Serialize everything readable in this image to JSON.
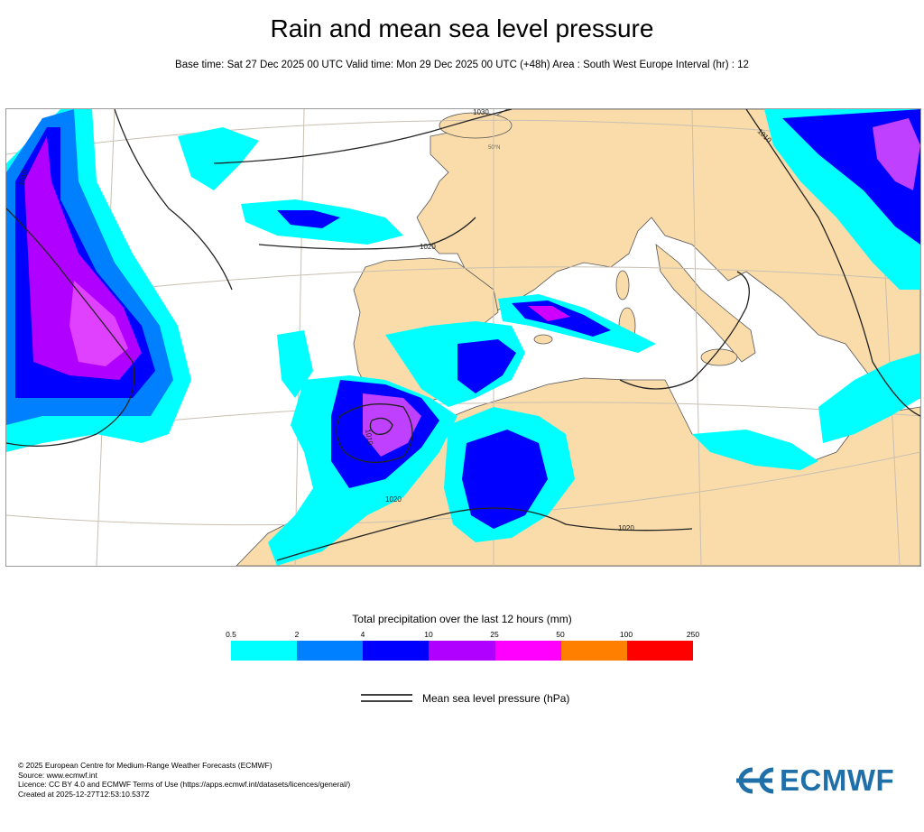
{
  "title": "Rain and mean sea level pressure",
  "subtitle": "Base time: Sat 27 Dec 2025 00 UTC Valid time: Mon 29 Dec 2025 00 UTC (+48h) Area : South West Europe Interval (hr) : 12",
  "map": {
    "isobar_labels": [
      "1030",
      "1020",
      "1010",
      "1020",
      "1020",
      "1010",
      "1010"
    ],
    "gridline_labels": [
      "50°N"
    ],
    "colors": {
      "land": "#f9dcaa",
      "sea": "#ffffff",
      "isobar": "#222222",
      "graticule": "#c9bfb2",
      "border": "#7a6b5a"
    }
  },
  "legend": {
    "title": "Total precipitation over the last 12 hours (mm)",
    "ticks": [
      "0.5",
      "2",
      "4",
      "10",
      "25",
      "50",
      "100",
      "250"
    ],
    "colors": [
      "#00ffff",
      "#0080ff",
      "#0000ff",
      "#b000ff",
      "#ff00ff",
      "#ff8000",
      "#ff0000"
    ],
    "pressure_label": "Mean sea level pressure (hPa)"
  },
  "footer": {
    "line1": "© 2025 European Centre for Medium-Range Weather Forecasts (ECMWF)",
    "line2": "Source: www.ecmwf.int",
    "line3": "Licence: CC BY 4.0 and ECMWF Terms of Use (https://apps.ecmwf.int/datasets/licences/general/)",
    "line4": "Created at 2025-12-27T12:53:10.537Z"
  },
  "logo": {
    "text": "ECMWF",
    "color": "#1f6fa8"
  }
}
